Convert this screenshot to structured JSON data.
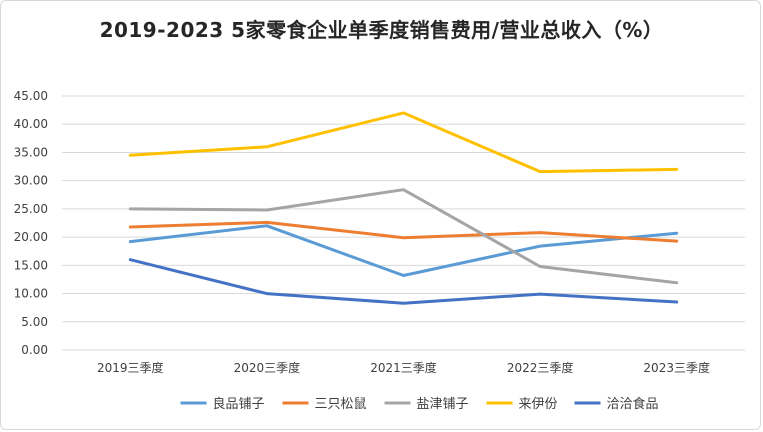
{
  "chart_data": {
    "type": "line",
    "title": "2019-2023 5家零食企业单季度销售费用/营业总收入（%）",
    "categories": [
      "2019三季度",
      "2020三季度",
      "2021三季度",
      "2022三季度",
      "2023三季度"
    ],
    "ylim": [
      0,
      45
    ],
    "yticks": [
      "0.00",
      "5.00",
      "10.00",
      "15.00",
      "20.00",
      "25.00",
      "30.00",
      "35.00",
      "40.00",
      "45.00"
    ],
    "grid": true,
    "legend_position": "bottom",
    "series": [
      {
        "name": "良品铺子",
        "color": "#5B9BD5",
        "values": [
          19.2,
          22.0,
          13.2,
          18.4,
          20.7
        ]
      },
      {
        "name": "三只松鼠",
        "color": "#ED7D31",
        "values": [
          21.8,
          22.6,
          19.9,
          20.8,
          19.3
        ]
      },
      {
        "name": "盐津铺子",
        "color": "#A5A5A5",
        "values": [
          25.0,
          24.8,
          28.4,
          14.8,
          11.9
        ]
      },
      {
        "name": "来伊份",
        "color": "#FFC000",
        "values": [
          34.5,
          36.0,
          42.0,
          31.6,
          32.0
        ]
      },
      {
        "name": "洽洽食品",
        "color": "#4472C4",
        "values": [
          16.0,
          10.0,
          8.3,
          9.9,
          8.5
        ]
      }
    ]
  }
}
